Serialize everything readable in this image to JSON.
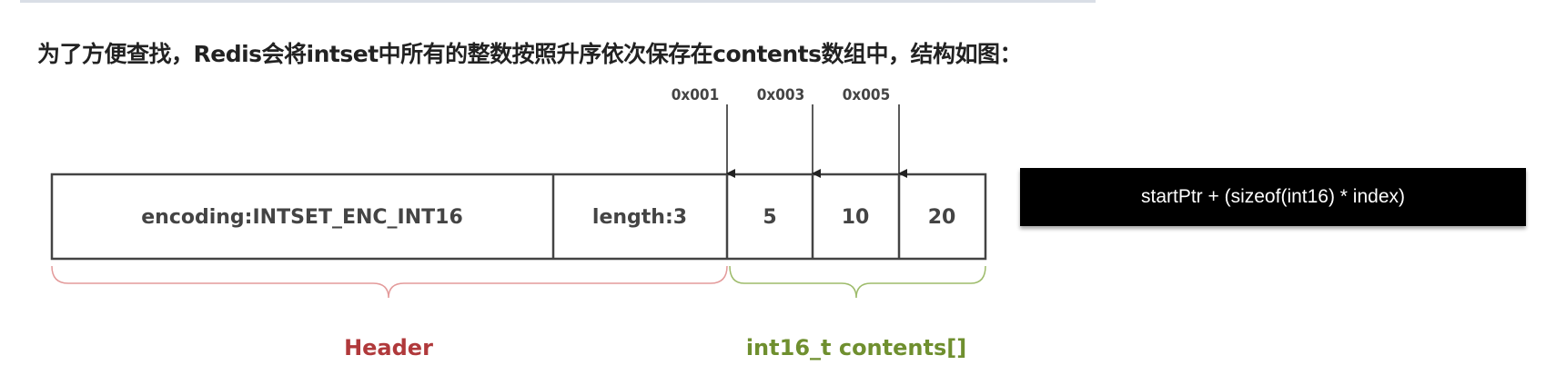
{
  "title": "为了方便查找，Redis会将intset中所有的整数按照升序依次保存在contents数组中，结构如图：",
  "intset": {
    "encoding": "encoding:INTSET_ENC_INT16",
    "length": "length:3",
    "contents": [
      "5",
      "10",
      "20"
    ],
    "addresses": [
      "0x001",
      "0x003",
      "0x005"
    ]
  },
  "labels": {
    "header": "Header",
    "contents": "int16_t contents[]"
  },
  "formula": "startPtr + (sizeof(int16) * index)",
  "colors": {
    "header": "#b0393b",
    "header_brace": "#e39a9a",
    "contents": "#6f8f2f",
    "contents_brace": "#9dbb6a",
    "box_border": "#444444"
  }
}
